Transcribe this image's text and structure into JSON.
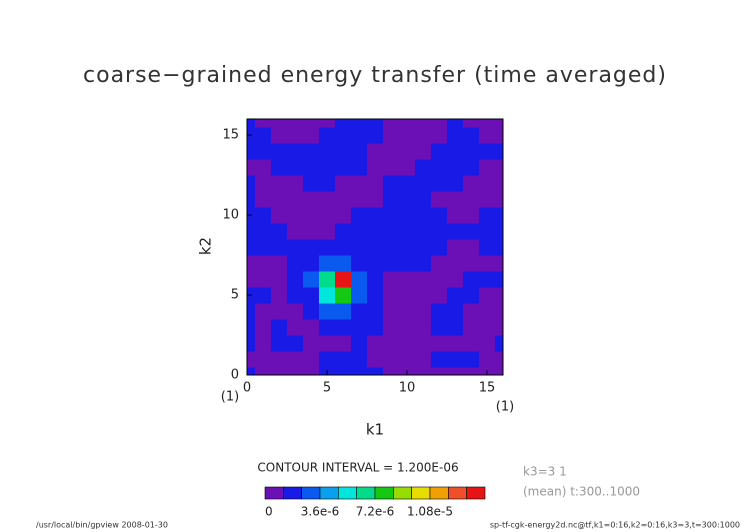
{
  "chart_data": {
    "type": "contour",
    "title": "coarse−grained energy transfer (time averaged)",
    "x_label": "k1",
    "y_label": "k2",
    "x": [
      0,
      1,
      2,
      3,
      4,
      5,
      6,
      7,
      8,
      9,
      10,
      11,
      12,
      13,
      14,
      15,
      16
    ],
    "y": [
      0,
      1,
      2,
      3,
      4,
      5,
      6,
      7,
      8,
      9,
      10,
      11,
      12,
      13,
      14,
      15,
      16
    ],
    "z": [
      [
        1.5e-06,
        5e-07,
        5e-07,
        5e-07,
        5e-07,
        1.5e-06,
        1.5e-06,
        1.5e-06,
        1.5e-06,
        5e-07,
        5e-07,
        5e-07,
        5e-07,
        5e-07,
        5e-07,
        5e-07,
        5e-07
      ],
      [
        5e-07,
        5e-07,
        5e-07,
        5e-07,
        5e-07,
        1.5e-06,
        1.5e-06,
        1.5e-06,
        5e-07,
        5e-07,
        5e-07,
        5e-07,
        1.5e-06,
        1.5e-06,
        1.5e-06,
        5e-07,
        5e-07
      ],
      [
        1.5e-06,
        5e-07,
        1.5e-06,
        1.5e-06,
        5e-07,
        5e-07,
        5e-07,
        1.5e-06,
        5e-07,
        5e-07,
        5e-07,
        5e-07,
        5e-07,
        5e-07,
        5e-07,
        5e-07,
        1.5e-06
      ],
      [
        1.5e-06,
        5e-07,
        1.5e-06,
        5e-07,
        5e-07,
        1.5e-06,
        1.5e-06,
        1.5e-06,
        1.5e-06,
        5e-07,
        5e-07,
        5e-07,
        1.5e-06,
        1.5e-06,
        5e-07,
        5e-07,
        5e-07
      ],
      [
        1.5e-06,
        5e-07,
        5e-07,
        5e-07,
        1.5e-06,
        2.5e-06,
        3e-06,
        1.5e-06,
        1.5e-06,
        5e-07,
        5e-07,
        5e-07,
        1.5e-06,
        1.5e-06,
        5e-07,
        5e-07,
        5e-07
      ],
      [
        1.5e-06,
        1.5e-06,
        5e-07,
        1.5e-06,
        2e-06,
        5e-06,
        8e-06,
        3e-06,
        1.5e-06,
        5e-07,
        5e-07,
        5e-07,
        5e-07,
        1.5e-06,
        1.5e-06,
        5e-07,
        5e-07
      ],
      [
        5e-07,
        5e-07,
        5e-07,
        1.5e-06,
        3e-06,
        6e-06,
        1.35e-05,
        3e-06,
        1.5e-06,
        5e-07,
        5e-07,
        5e-07,
        5e-07,
        5e-07,
        1.5e-06,
        1.5e-06,
        1.5e-06
      ],
      [
        5e-07,
        5e-07,
        5e-07,
        1.5e-06,
        1.5e-06,
        2.5e-06,
        3e-06,
        2e-06,
        1.5e-06,
        1.5e-06,
        1.5e-06,
        1.5e-06,
        5e-07,
        5e-07,
        5e-07,
        5e-07,
        5e-07
      ],
      [
        1.5e-06,
        1.5e-06,
        1.5e-06,
        1.5e-06,
        1.5e-06,
        1.5e-06,
        1.5e-06,
        1.5e-06,
        1.5e-06,
        1.5e-06,
        1.5e-06,
        1.5e-06,
        1.5e-06,
        5e-07,
        5e-07,
        1.5e-06,
        1.5e-06
      ],
      [
        1.5e-06,
        1.5e-06,
        1.5e-06,
        5e-07,
        5e-07,
        5e-07,
        1.5e-06,
        1.5e-06,
        1.5e-06,
        1.5e-06,
        1.5e-06,
        1.5e-06,
        1.5e-06,
        1.5e-06,
        1.5e-06,
        1.5e-06,
        1.5e-06
      ],
      [
        1.5e-06,
        1.5e-06,
        5e-07,
        5e-07,
        5e-07,
        5e-07,
        5e-07,
        1.5e-06,
        1.5e-06,
        1.5e-06,
        1.5e-06,
        1.5e-06,
        1.5e-06,
        5e-07,
        5e-07,
        1.5e-06,
        1.5e-06
      ],
      [
        1.5e-06,
        5e-07,
        5e-07,
        5e-07,
        5e-07,
        5e-07,
        5e-07,
        5e-07,
        5e-07,
        1.5e-06,
        1.5e-06,
        1.5e-06,
        5e-07,
        5e-07,
        5e-07,
        5e-07,
        5e-07
      ],
      [
        1.5e-06,
        5e-07,
        5e-07,
        5e-07,
        1.5e-06,
        1.5e-06,
        5e-07,
        5e-07,
        5e-07,
        1.5e-06,
        1.5e-06,
        1.5e-06,
        1.5e-06,
        1.5e-06,
        5e-07,
        5e-07,
        5e-07
      ],
      [
        5e-07,
        5e-07,
        1.5e-06,
        1.5e-06,
        1.5e-06,
        1.5e-06,
        1.5e-06,
        1.5e-06,
        5e-07,
        5e-07,
        5e-07,
        1.5e-06,
        1.5e-06,
        1.5e-06,
        1.5e-06,
        5e-07,
        5e-07
      ],
      [
        1.5e-06,
        1.5e-06,
        1.5e-06,
        1.5e-06,
        1.5e-06,
        1.5e-06,
        1.5e-06,
        1.5e-06,
        5e-07,
        5e-07,
        5e-07,
        5e-07,
        1.5e-06,
        1.5e-06,
        1.5e-06,
        1.5e-06,
        1.5e-06
      ],
      [
        1.5e-06,
        1.5e-06,
        5e-07,
        5e-07,
        5e-07,
        1.5e-06,
        1.5e-06,
        1.5e-06,
        1.5e-06,
        5e-07,
        5e-07,
        5e-07,
        5e-07,
        1.5e-06,
        1.5e-06,
        5e-07,
        5e-07
      ],
      [
        1.5e-06,
        5e-07,
        5e-07,
        5e-07,
        5e-07,
        5e-07,
        1.5e-06,
        1.5e-06,
        1.5e-06,
        5e-07,
        5e-07,
        5e-07,
        5e-07,
        1.5e-06,
        5e-07,
        5e-07,
        5e-07
      ]
    ],
    "xlim": [
      0,
      16
    ],
    "ylim": [
      0,
      16
    ],
    "xticks": [
      0,
      5,
      10,
      15
    ],
    "yticks": [
      0,
      5,
      10,
      15
    ],
    "x_end_labels": [
      "(1)",
      "(1)"
    ],
    "levels": [
      0,
      1.2e-06,
      2.4e-06,
      3.6e-06,
      4.8e-06,
      6e-06,
      7.2e-06,
      8.4e-06,
      9.6e-06,
      1.08e-05,
      1.2e-05,
      1.32e-05,
      1.44e-05
    ],
    "colors": [
      "#6a10b4",
      "#1a1ae6",
      "#0a5af0",
      "#0aa0f0",
      "#00e6dc",
      "#00dc8c",
      "#14c814",
      "#96dc00",
      "#e6dc00",
      "#f0a000",
      "#f05028",
      "#e61414"
    ],
    "colorbar_ticks": [
      0,
      {
        "value": 3.6e-06,
        "label": "3.6e-6"
      },
      {
        "value": 7.2e-06,
        "label": "7.2e-6"
      },
      {
        "value": 1.08e-05,
        "label": "1.08e-5"
      }
    ],
    "contour_interval": "CONTOUR INTERVAL = 1.200E-06",
    "annotations": [
      "k3=3 1",
      "(mean) t:300..1000"
    ],
    "footer_left": "/usr/local/bin/gpview  2008-01-30",
    "footer_right": "sp-tf-cgk-energy2d.nc@tf,k1=0:16,k2=0:16,k3=3,t=300:1000"
  }
}
